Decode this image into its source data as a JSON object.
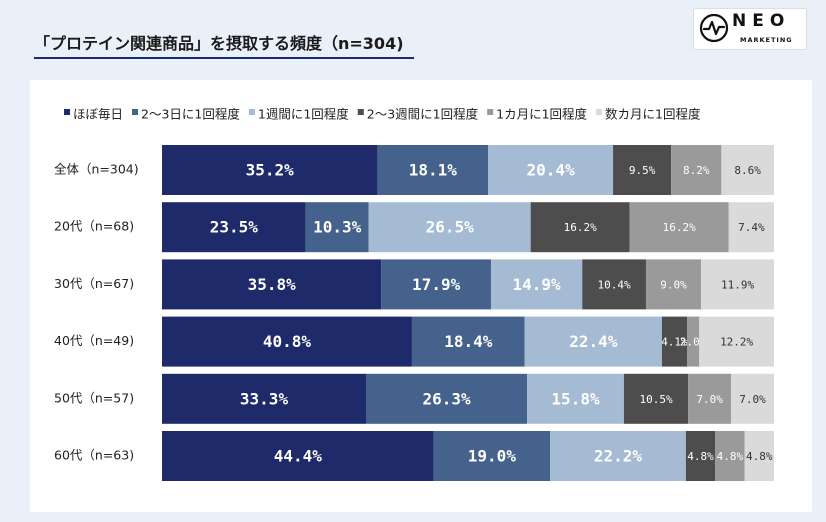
{
  "title": "「プロテイン関連商品」を摂取する頻度（n=304)",
  "logo": {
    "text": "NEO",
    "subtext": "MARKETING"
  },
  "chart_data": {
    "type": "bar",
    "orientation": "horizontal",
    "stacked": true,
    "normalized": "100%",
    "legend_position": "top",
    "categories": [
      "全体（n=304)",
      "20代（n=68)",
      "30代（n=67)",
      "40代（n=49)",
      "50代（n=57)",
      "60代（n=63)"
    ],
    "series": [
      {
        "name": "ほぼ毎日",
        "color": "#1f2a6b",
        "values": [
          35.2,
          23.5,
          35.8,
          40.8,
          33.3,
          44.4
        ]
      },
      {
        "name": "2～3日に1回程度",
        "color": "#44628c",
        "values": [
          18.1,
          10.3,
          17.9,
          18.4,
          26.3,
          19.0
        ]
      },
      {
        "name": "1週間に1回程度",
        "color": "#a5bbd4",
        "values": [
          20.4,
          26.5,
          14.9,
          22.4,
          15.8,
          22.2
        ]
      },
      {
        "name": "2～3週間に1回程度",
        "color": "#4d4d4d",
        "values": [
          9.5,
          16.2,
          10.4,
          4.1,
          10.5,
          4.8
        ]
      },
      {
        "name": "1カ月に1回程度",
        "color": "#9a9a9a",
        "values": [
          8.2,
          16.2,
          9.0,
          2.0,
          7.0,
          4.8
        ]
      },
      {
        "name": "数カ月に1回程度",
        "color": "#dadada",
        "values": [
          8.6,
          7.4,
          11.9,
          12.2,
          7.0,
          4.8
        ]
      }
    ],
    "label_colors": [
      "#ffffff",
      "#ffffff",
      "#ffffff",
      "#ffffff",
      "#ffffff",
      "#333333"
    ]
  }
}
